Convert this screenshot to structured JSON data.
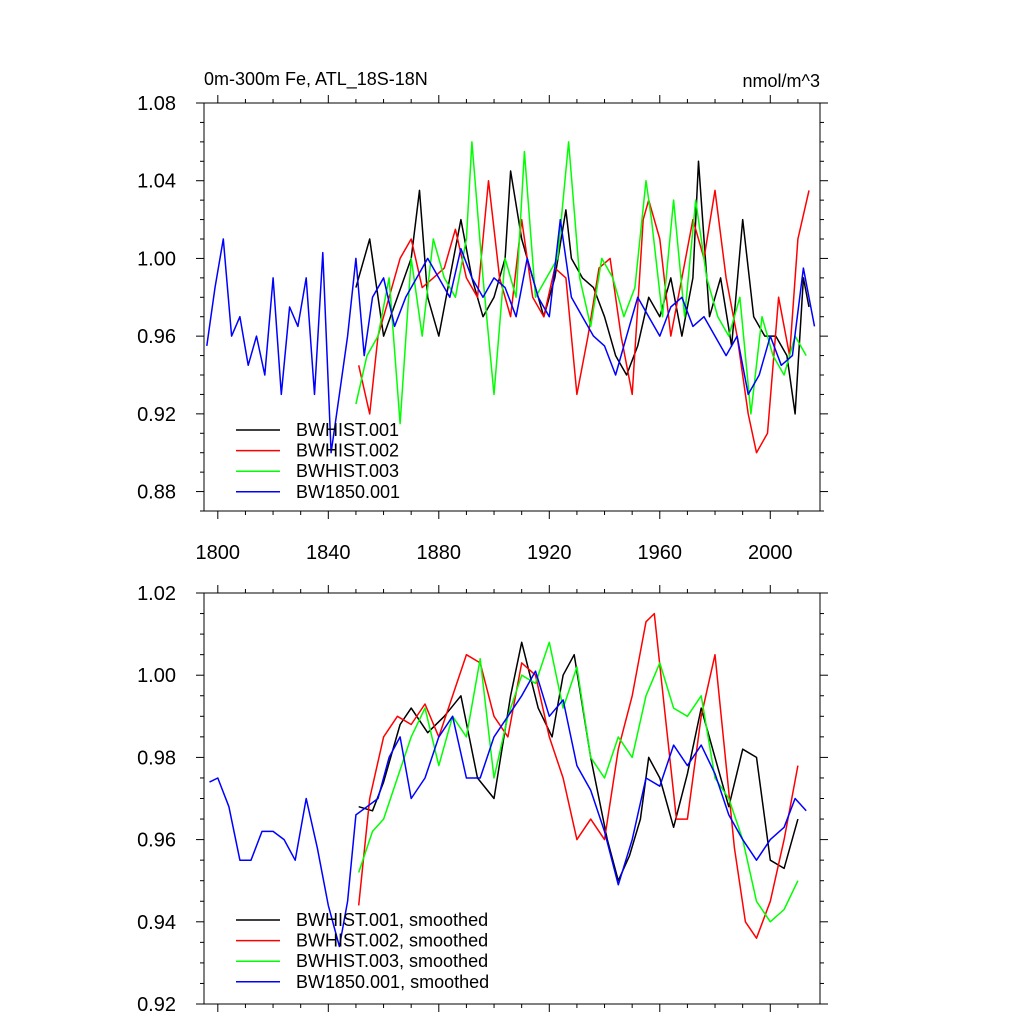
{
  "figure": {
    "title_left": "0m-300m Fe, ATL_18S-18N",
    "title_right": "nmol/m^3"
  },
  "chart_data": [
    {
      "type": "line",
      "title": "0m-300m Fe, ATL_18S-18N",
      "units": "nmol/m^3",
      "xlim": [
        1795,
        2018
      ],
      "ylim": [
        0.87,
        1.08
      ],
      "xticks": [
        1800,
        1840,
        1880,
        1920,
        1960,
        2000
      ],
      "yticks": [
        0.88,
        0.92,
        0.96,
        1.0,
        1.04,
        1.08
      ],
      "xtick_labels": [
        "1800",
        "1840",
        "1880",
        "1920",
        "1960",
        "2000"
      ],
      "ytick_labels": [
        "0.88",
        "0.92",
        "0.96",
        "1.00",
        "1.04",
        "1.08"
      ],
      "legend_position": "bottom-left",
      "series": [
        {
          "name": "BWHIST.001",
          "color": "#000000",
          "x": [
            1850,
            1855,
            1860,
            1865,
            1870,
            1873,
            1876,
            1880,
            1884,
            1888,
            1892,
            1896,
            1900,
            1904,
            1906,
            1910,
            1914,
            1918,
            1922,
            1926,
            1928,
            1932,
            1936,
            1940,
            1944,
            1948,
            1952,
            1956,
            1960,
            1964,
            1968,
            1972,
            1974,
            1978,
            1982,
            1986,
            1990,
            1994,
            1998,
            2002,
            2006,
            2009,
            2012,
            2014
          ],
          "values": [
            0.985,
            1.01,
            0.96,
            0.98,
            1.0,
            1.035,
            0.98,
            0.96,
            0.99,
            1.02,
            0.99,
            0.97,
            0.98,
            1.0,
            1.045,
            1.01,
            0.99,
            0.97,
            0.99,
            1.025,
            1.0,
            0.99,
            0.985,
            0.97,
            0.95,
            0.94,
            0.955,
            0.98,
            0.97,
            0.99,
            0.96,
            0.99,
            1.05,
            0.97,
            0.99,
            0.955,
            1.02,
            0.97,
            0.96,
            0.96,
            0.95,
            0.92,
            0.99,
            0.975
          ]
        },
        {
          "name": "BWHIST.002",
          "color": "#ff0000",
          "x": [
            1851,
            1855,
            1858,
            1862,
            1866,
            1870,
            1874,
            1878,
            1882,
            1886,
            1890,
            1894,
            1898,
            1902,
            1906,
            1910,
            1914,
            1918,
            1922,
            1926,
            1930,
            1934,
            1938,
            1942,
            1946,
            1950,
            1954,
            1956,
            1960,
            1964,
            1968,
            1972,
            1976,
            1980,
            1984,
            1988,
            1992,
            1995,
            1999,
            2003,
            2007,
            2010,
            2014
          ],
          "values": [
            0.945,
            0.92,
            0.96,
            0.98,
            1.0,
            1.01,
            0.985,
            0.99,
            0.995,
            1.015,
            0.99,
            0.98,
            1.04,
            0.99,
            0.97,
            1.02,
            0.98,
            0.97,
            0.995,
            0.99,
            0.93,
            0.96,
            0.995,
            1.0,
            0.96,
            0.93,
            1.02,
            1.03,
            1.01,
            0.96,
            0.99,
            1.02,
            1.0,
            1.035,
            0.99,
            0.96,
            0.92,
            0.9,
            0.91,
            0.98,
            0.95,
            1.01,
            1.035
          ]
        },
        {
          "name": "BWHIST.003",
          "color": "#00ff00",
          "x": [
            1850,
            1854,
            1858,
            1862,
            1866,
            1870,
            1874,
            1878,
            1882,
            1886,
            1890,
            1892,
            1896,
            1900,
            1904,
            1908,
            1911,
            1915,
            1919,
            1923,
            1927,
            1931,
            1935,
            1939,
            1943,
            1947,
            1951,
            1955,
            1957,
            1961,
            1965,
            1969,
            1973,
            1977,
            1981,
            1985,
            1989,
            1993,
            1997,
            2001,
            2005,
            2009,
            2013
          ],
          "values": [
            0.925,
            0.95,
            0.96,
            0.99,
            0.915,
            1.0,
            0.96,
            1.01,
            0.99,
            0.98,
            1.01,
            1.06,
            0.99,
            0.93,
            1.0,
            0.98,
            1.055,
            0.98,
            0.99,
            1.0,
            1.06,
            0.99,
            0.965,
            1.0,
            0.99,
            0.97,
            0.985,
            1.04,
            1.02,
            0.97,
            1.03,
            0.97,
            1.03,
            0.99,
            0.97,
            0.96,
            0.98,
            0.92,
            0.97,
            0.95,
            0.94,
            0.96,
            0.95
          ]
        },
        {
          "name": "BW1850.001",
          "color": "#0000ff",
          "x": [
            1796,
            1799,
            1802,
            1805,
            1808,
            1811,
            1814,
            1817,
            1820,
            1823,
            1826,
            1829,
            1832,
            1835,
            1838,
            1841,
            1844,
            1847,
            1850,
            1853,
            1856,
            1860,
            1864,
            1868,
            1872,
            1876,
            1880,
            1884,
            1888,
            1892,
            1896,
            1900,
            1904,
            1908,
            1912,
            1916,
            1920,
            1924,
            1928,
            1932,
            1936,
            1940,
            1944,
            1948,
            1952,
            1956,
            1960,
            1964,
            1968,
            1972,
            1976,
            1980,
            1984,
            1988,
            1992,
            1996,
            2000,
            2004,
            2008,
            2012,
            2016
          ],
          "values": [
            0.955,
            0.985,
            1.01,
            0.96,
            0.97,
            0.945,
            0.96,
            0.94,
            0.99,
            0.93,
            0.975,
            0.965,
            0.99,
            0.93,
            1.003,
            0.9,
            0.93,
            0.96,
            1.0,
            0.95,
            0.98,
            0.99,
            0.965,
            0.98,
            0.99,
            1.0,
            0.99,
            0.98,
            1.005,
            0.99,
            0.98,
            0.99,
            0.985,
            0.97,
            1.0,
            0.98,
            0.97,
            1.02,
            0.98,
            0.97,
            0.96,
            0.955,
            0.94,
            0.96,
            0.98,
            0.97,
            0.96,
            0.975,
            0.98,
            0.965,
            0.97,
            0.96,
            0.95,
            0.96,
            0.93,
            0.94,
            0.96,
            0.945,
            0.95,
            0.995,
            0.965
          ]
        }
      ]
    },
    {
      "type": "line",
      "title": "",
      "xlim": [
        1795,
        2018
      ],
      "ylim": [
        0.92,
        1.02
      ],
      "yticks": [
        0.92,
        0.94,
        0.96,
        0.98,
        1.0,
        1.02
      ],
      "ytick_labels": [
        "0.92",
        "0.94",
        "0.96",
        "0.98",
        "1.00",
        "1.02"
      ],
      "legend_position": "bottom-left",
      "series": [
        {
          "name": "BWHIST.001, smoothed",
          "color": "#000000",
          "x": [
            1851,
            1856,
            1860,
            1866,
            1870,
            1876,
            1882,
            1888,
            1894,
            1900,
            1906,
            1910,
            1916,
            1921,
            1925,
            1929,
            1935,
            1941,
            1945,
            1949,
            1953,
            1956,
            1960,
            1965,
            1970,
            1975,
            1980,
            1985,
            1990,
            1995,
            2000,
            2005,
            2010
          ],
          "values": [
            0.968,
            0.967,
            0.974,
            0.988,
            0.992,
            0.986,
            0.99,
            0.995,
            0.975,
            0.97,
            0.995,
            1.008,
            0.992,
            0.985,
            1.0,
            1.005,
            0.98,
            0.96,
            0.95,
            0.956,
            0.965,
            0.98,
            0.975,
            0.963,
            0.976,
            0.992,
            0.98,
            0.968,
            0.982,
            0.98,
            0.955,
            0.953,
            0.965
          ]
        },
        {
          "name": "BWHIST.002, smoothed",
          "color": "#ff0000",
          "x": [
            1851,
            1855,
            1860,
            1865,
            1870,
            1875,
            1880,
            1885,
            1890,
            1895,
            1900,
            1905,
            1910,
            1915,
            1920,
            1925,
            1930,
            1935,
            1940,
            1945,
            1950,
            1955,
            1958,
            1962,
            1966,
            1970,
            1975,
            1980,
            1983,
            1987,
            1991,
            1995,
            2000,
            2005,
            2010
          ],
          "values": [
            0.944,
            0.97,
            0.985,
            0.99,
            0.988,
            0.993,
            0.985,
            0.995,
            1.005,
            1.003,
            0.99,
            0.985,
            1.003,
            1.0,
            0.985,
            0.975,
            0.96,
            0.965,
            0.96,
            0.982,
            0.995,
            1.013,
            1.015,
            0.99,
            0.965,
            0.965,
            0.99,
            1.005,
            0.985,
            0.958,
            0.94,
            0.936,
            0.945,
            0.96,
            0.978
          ]
        },
        {
          "name": "BWHIST.003, smoothed",
          "color": "#00ff00",
          "x": [
            1851,
            1856,
            1860,
            1865,
            1870,
            1875,
            1880,
            1885,
            1890,
            1895,
            1900,
            1905,
            1910,
            1915,
            1920,
            1925,
            1930,
            1935,
            1940,
            1945,
            1950,
            1955,
            1960,
            1965,
            1970,
            1975,
            1980,
            1985,
            1990,
            1995,
            2000,
            2005,
            2010
          ],
          "values": [
            0.952,
            0.962,
            0.965,
            0.975,
            0.985,
            0.992,
            0.978,
            0.99,
            0.985,
            1.004,
            0.975,
            0.99,
            1.0,
            0.998,
            1.008,
            0.992,
            1.002,
            0.98,
            0.975,
            0.985,
            0.98,
            0.995,
            1.003,
            0.992,
            0.99,
            0.995,
            0.975,
            0.97,
            0.96,
            0.945,
            0.94,
            0.943,
            0.95
          ]
        },
        {
          "name": "BW1850.001, smoothed",
          "color": "#0000ff",
          "x": [
            1797,
            1800,
            1804,
            1808,
            1812,
            1816,
            1820,
            1824,
            1828,
            1832,
            1836,
            1840,
            1844,
            1847,
            1850,
            1854,
            1858,
            1862,
            1866,
            1870,
            1875,
            1880,
            1885,
            1890,
            1895,
            1900,
            1905,
            1910,
            1915,
            1920,
            1925,
            1930,
            1935,
            1940,
            1945,
            1950,
            1955,
            1960,
            1965,
            1970,
            1975,
            1980,
            1985,
            1990,
            1995,
            2000,
            2005,
            2009,
            2013
          ],
          "values": [
            0.974,
            0.975,
            0.968,
            0.955,
            0.955,
            0.962,
            0.962,
            0.96,
            0.955,
            0.97,
            0.958,
            0.944,
            0.934,
            0.945,
            0.966,
            0.968,
            0.97,
            0.98,
            0.985,
            0.97,
            0.975,
            0.985,
            0.99,
            0.975,
            0.975,
            0.985,
            0.99,
            0.995,
            1.001,
            0.99,
            0.994,
            0.978,
            0.972,
            0.962,
            0.949,
            0.96,
            0.975,
            0.973,
            0.983,
            0.978,
            0.983,
            0.976,
            0.966,
            0.96,
            0.955,
            0.96,
            0.963,
            0.97,
            0.967
          ]
        }
      ]
    }
  ]
}
